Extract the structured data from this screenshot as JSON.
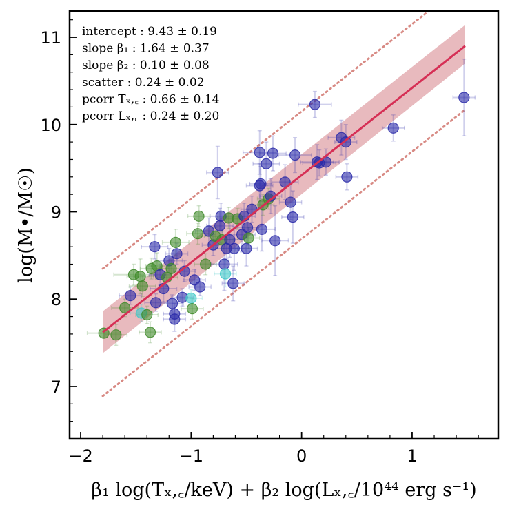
{
  "chart_data": {
    "type": "scatter",
    "xlabel": "β₁ log(Tₓ,꜀/keV) + β₂ log(Lₓ,꜀/10⁴⁴ erg s⁻¹)",
    "ylabel": "log(M•/M☉)",
    "xlim": [
      -2.1,
      1.78
    ],
    "ylim": [
      6.4,
      11.3
    ],
    "xticks": [
      -2,
      -1,
      0,
      1
    ],
    "xtick_labels": [
      "−2",
      "−1",
      "0",
      "1"
    ],
    "yticks": [
      7,
      8,
      9,
      10,
      11
    ],
    "ytick_labels": [
      "7",
      "8",
      "9",
      "10",
      "11"
    ],
    "grid": false,
    "annotations": [
      "intercept :  9.43 ± 0.19",
      "slope β₁ :  1.64 ± 0.37",
      "slope β₂ :  0.10 ± 0.08",
      "scatter :  0.24 ± 0.02",
      "pcorr Tₓ,꜀ :  0.66 ± 0.14",
      "pcorr Lₓ,꜀ :  0.24 ± 0.20"
    ],
    "fit": {
      "x": [
        -1.8,
        1.48
      ],
      "y": [
        7.62,
        10.9
      ],
      "band_low": [
        7.38,
        10.7
      ],
      "band_high": [
        7.86,
        11.14
      ],
      "scatter_low": [
        6.89,
        10.17
      ],
      "scatter_high": [
        8.35,
        11.63
      ],
      "line_color": "#d62f55",
      "band_color": "#d98c92",
      "dotted_color": "#d88a84"
    },
    "colors": {
      "blue": "#2a2aa8",
      "green": "#3f8a2a",
      "cyan": "#40c8c8"
    },
    "points": [
      {
        "x": -1.79,
        "y": 7.61,
        "c": "green",
        "xe": 0.15,
        "ye": 0.05
      },
      {
        "x": -1.68,
        "y": 7.59,
        "c": "green",
        "xe": 0.1,
        "ye": 0.12
      },
      {
        "x": -1.6,
        "y": 7.9,
        "c": "green",
        "xe": 0.12,
        "ye": 0.1
      },
      {
        "x": -1.55,
        "y": 8.04,
        "c": "blue",
        "xe": 0.1,
        "ye": 0.1
      },
      {
        "x": -1.52,
        "y": 8.28,
        "c": "green",
        "xe": 0.18,
        "ye": 0.12
      },
      {
        "x": -1.46,
        "y": 8.26,
        "c": "green",
        "xe": 0.12,
        "ye": 0.2
      },
      {
        "x": -1.45,
        "y": 7.84,
        "c": "cyan",
        "xe": 0.1,
        "ye": 0.1
      },
      {
        "x": -1.44,
        "y": 8.15,
        "c": "green",
        "xe": 0.12,
        "ye": 0.12
      },
      {
        "x": -1.4,
        "y": 7.82,
        "c": "green",
        "xe": 0.1,
        "ye": 0.1
      },
      {
        "x": -1.37,
        "y": 7.62,
        "c": "green",
        "xe": 0.1,
        "ye": 0.12
      },
      {
        "x": -1.36,
        "y": 8.35,
        "c": "green",
        "xe": 0.1,
        "ye": 0.12
      },
      {
        "x": -1.33,
        "y": 8.6,
        "c": "blue",
        "xe": 0.12,
        "ye": 0.14
      },
      {
        "x": -1.32,
        "y": 7.96,
        "c": "blue",
        "xe": 0.1,
        "ye": 0.1
      },
      {
        "x": -1.31,
        "y": 8.38,
        "c": "green",
        "xe": 0.1,
        "ye": 0.15
      },
      {
        "x": -1.28,
        "y": 8.28,
        "c": "blue",
        "xe": 0.1,
        "ye": 0.12
      },
      {
        "x": -1.25,
        "y": 8.12,
        "c": "blue",
        "xe": 0.12,
        "ye": 0.15
      },
      {
        "x": -1.22,
        "y": 8.25,
        "c": "green",
        "xe": 0.1,
        "ye": 0.1
      },
      {
        "x": -1.2,
        "y": 8.44,
        "c": "blue",
        "xe": 0.12,
        "ye": 0.14
      },
      {
        "x": -1.18,
        "y": 8.35,
        "c": "green",
        "xe": 0.1,
        "ye": 0.1
      },
      {
        "x": -1.17,
        "y": 7.95,
        "c": "blue",
        "xe": 0.1,
        "ye": 0.1
      },
      {
        "x": -1.15,
        "y": 7.83,
        "c": "blue",
        "xe": 0.1,
        "ye": 0.12
      },
      {
        "x": -1.15,
        "y": 7.77,
        "c": "blue",
        "xe": 0.1,
        "ye": 0.14
      },
      {
        "x": -1.14,
        "y": 8.65,
        "c": "green",
        "xe": 0.12,
        "ye": 0.15
      },
      {
        "x": -1.13,
        "y": 8.52,
        "c": "blue",
        "xe": 0.1,
        "ye": 0.12
      },
      {
        "x": -1.08,
        "y": 8.02,
        "c": "blue",
        "xe": 0.1,
        "ye": 0.1
      },
      {
        "x": -1.06,
        "y": 8.32,
        "c": "blue",
        "xe": 0.1,
        "ye": 0.12
      },
      {
        "x": -1.0,
        "y": 8.01,
        "c": "cyan",
        "xe": 0.1,
        "ye": 0.1
      },
      {
        "x": -0.99,
        "y": 7.89,
        "c": "green",
        "xe": 0.1,
        "ye": 0.12
      },
      {
        "x": -0.97,
        "y": 8.22,
        "c": "blue",
        "xe": 0.1,
        "ye": 0.12
      },
      {
        "x": -0.94,
        "y": 8.75,
        "c": "green",
        "xe": 0.1,
        "ye": 0.12
      },
      {
        "x": -0.93,
        "y": 8.95,
        "c": "green",
        "xe": 0.1,
        "ye": 0.12
      },
      {
        "x": -0.92,
        "y": 8.14,
        "c": "blue",
        "xe": 0.1,
        "ye": 0.1
      },
      {
        "x": -0.87,
        "y": 8.4,
        "c": "green",
        "xe": 0.1,
        "ye": 0.12
      },
      {
        "x": -0.84,
        "y": 8.78,
        "c": "blue",
        "xe": 0.12,
        "ye": 0.15
      },
      {
        "x": -0.8,
        "y": 8.62,
        "c": "blue",
        "xe": 0.1,
        "ye": 0.12
      },
      {
        "x": -0.78,
        "y": 8.72,
        "c": "green",
        "xe": 0.1,
        "ye": 0.1
      },
      {
        "x": -0.76,
        "y": 9.45,
        "c": "blue",
        "xe": 0.1,
        "ye": 0.3
      },
      {
        "x": -0.74,
        "y": 8.84,
        "c": "blue",
        "xe": 0.12,
        "ye": 0.2
      },
      {
        "x": -0.73,
        "y": 8.95,
        "c": "blue",
        "xe": 0.1,
        "ye": 0.15
      },
      {
        "x": -0.72,
        "y": 8.68,
        "c": "green",
        "xe": 0.1,
        "ye": 0.1
      },
      {
        "x": -0.7,
        "y": 8.4,
        "c": "blue",
        "xe": 0.12,
        "ye": 0.3
      },
      {
        "x": -0.69,
        "y": 8.29,
        "c": "cyan",
        "xe": 0.1,
        "ye": 0.15
      },
      {
        "x": -0.68,
        "y": 8.58,
        "c": "blue",
        "xe": 0.1,
        "ye": 0.12
      },
      {
        "x": -0.66,
        "y": 8.93,
        "c": "green",
        "xe": 0.1,
        "ye": 0.12
      },
      {
        "x": -0.65,
        "y": 8.68,
        "c": "blue",
        "xe": 0.1,
        "ye": 0.2
      },
      {
        "x": -0.62,
        "y": 8.18,
        "c": "blue",
        "xe": 0.1,
        "ye": 0.2
      },
      {
        "x": -0.61,
        "y": 8.58,
        "c": "blue",
        "xe": 0.1,
        "ye": 0.25
      },
      {
        "x": -0.58,
        "y": 8.92,
        "c": "green",
        "xe": 0.1,
        "ye": 0.12
      },
      {
        "x": -0.54,
        "y": 8.74,
        "c": "blue",
        "xe": 0.12,
        "ye": 0.2
      },
      {
        "x": -0.52,
        "y": 8.95,
        "c": "blue",
        "xe": 0.1,
        "ye": 0.15
      },
      {
        "x": -0.5,
        "y": 8.58,
        "c": "blue",
        "xe": 0.1,
        "ye": 0.2
      },
      {
        "x": -0.49,
        "y": 8.82,
        "c": "blue",
        "xe": 0.1,
        "ye": 0.2
      },
      {
        "x": -0.48,
        "y": 8.7,
        "c": "green",
        "xe": 0.1,
        "ye": 0.12
      },
      {
        "x": -0.45,
        "y": 9.03,
        "c": "blue",
        "xe": 0.1,
        "ye": 0.15
      },
      {
        "x": -0.38,
        "y": 9.68,
        "c": "blue",
        "xe": 0.15,
        "ye": 0.25
      },
      {
        "x": -0.38,
        "y": 9.3,
        "c": "blue",
        "xe": 0.12,
        "ye": 0.25
      },
      {
        "x": -0.37,
        "y": 9.32,
        "c": "blue",
        "xe": 0.1,
        "ye": 0.2
      },
      {
        "x": -0.36,
        "y": 8.8,
        "c": "blue",
        "xe": 0.12,
        "ye": 0.25
      },
      {
        "x": -0.35,
        "y": 9.08,
        "c": "green",
        "xe": 0.1,
        "ye": 0.12
      },
      {
        "x": -0.32,
        "y": 9.55,
        "c": "blue",
        "xe": 0.12,
        "ye": 0.25
      },
      {
        "x": -0.3,
        "y": 9.15,
        "c": "green",
        "xe": 0.1,
        "ye": 0.12
      },
      {
        "x": -0.28,
        "y": 9.18,
        "c": "blue",
        "xe": 0.1,
        "ye": 0.2
      },
      {
        "x": -0.26,
        "y": 9.67,
        "c": "blue",
        "xe": 0.12,
        "ye": 0.2
      },
      {
        "x": -0.24,
        "y": 8.67,
        "c": "blue",
        "xe": 0.12,
        "ye": 0.4
      },
      {
        "x": -0.15,
        "y": 9.34,
        "c": "blue",
        "xe": 0.12,
        "ye": 0.2
      },
      {
        "x": -0.1,
        "y": 9.11,
        "c": "blue",
        "xe": 0.1,
        "ye": 0.2
      },
      {
        "x": -0.08,
        "y": 8.94,
        "c": "blue",
        "xe": 0.1,
        "ye": 0.3
      },
      {
        "x": -0.06,
        "y": 9.65,
        "c": "blue",
        "xe": 0.15,
        "ye": 0.2
      },
      {
        "x": 0.12,
        "y": 10.23,
        "c": "blue",
        "xe": 0.15,
        "ye": 0.15
      },
      {
        "x": 0.14,
        "y": 9.57,
        "c": "blue",
        "xe": 0.15,
        "ye": 0.2
      },
      {
        "x": 0.16,
        "y": 9.56,
        "c": "blue",
        "xe": 0.15,
        "ye": 0.15
      },
      {
        "x": 0.22,
        "y": 9.57,
        "c": "blue",
        "xe": 0.12,
        "ye": 0.15
      },
      {
        "x": 0.36,
        "y": 9.85,
        "c": "blue",
        "xe": 0.12,
        "ye": 0.2
      },
      {
        "x": 0.4,
        "y": 9.8,
        "c": "blue",
        "xe": 0.1,
        "ye": 0.2
      },
      {
        "x": 0.41,
        "y": 9.4,
        "c": "blue",
        "xe": 0.1,
        "ye": 0.15
      },
      {
        "x": 0.83,
        "y": 9.96,
        "c": "blue",
        "xe": 0.1,
        "ye": 0.15
      },
      {
        "x": 1.47,
        "y": 10.31,
        "c": "blue",
        "xe": 0.1,
        "ye": 0.44
      }
    ]
  }
}
